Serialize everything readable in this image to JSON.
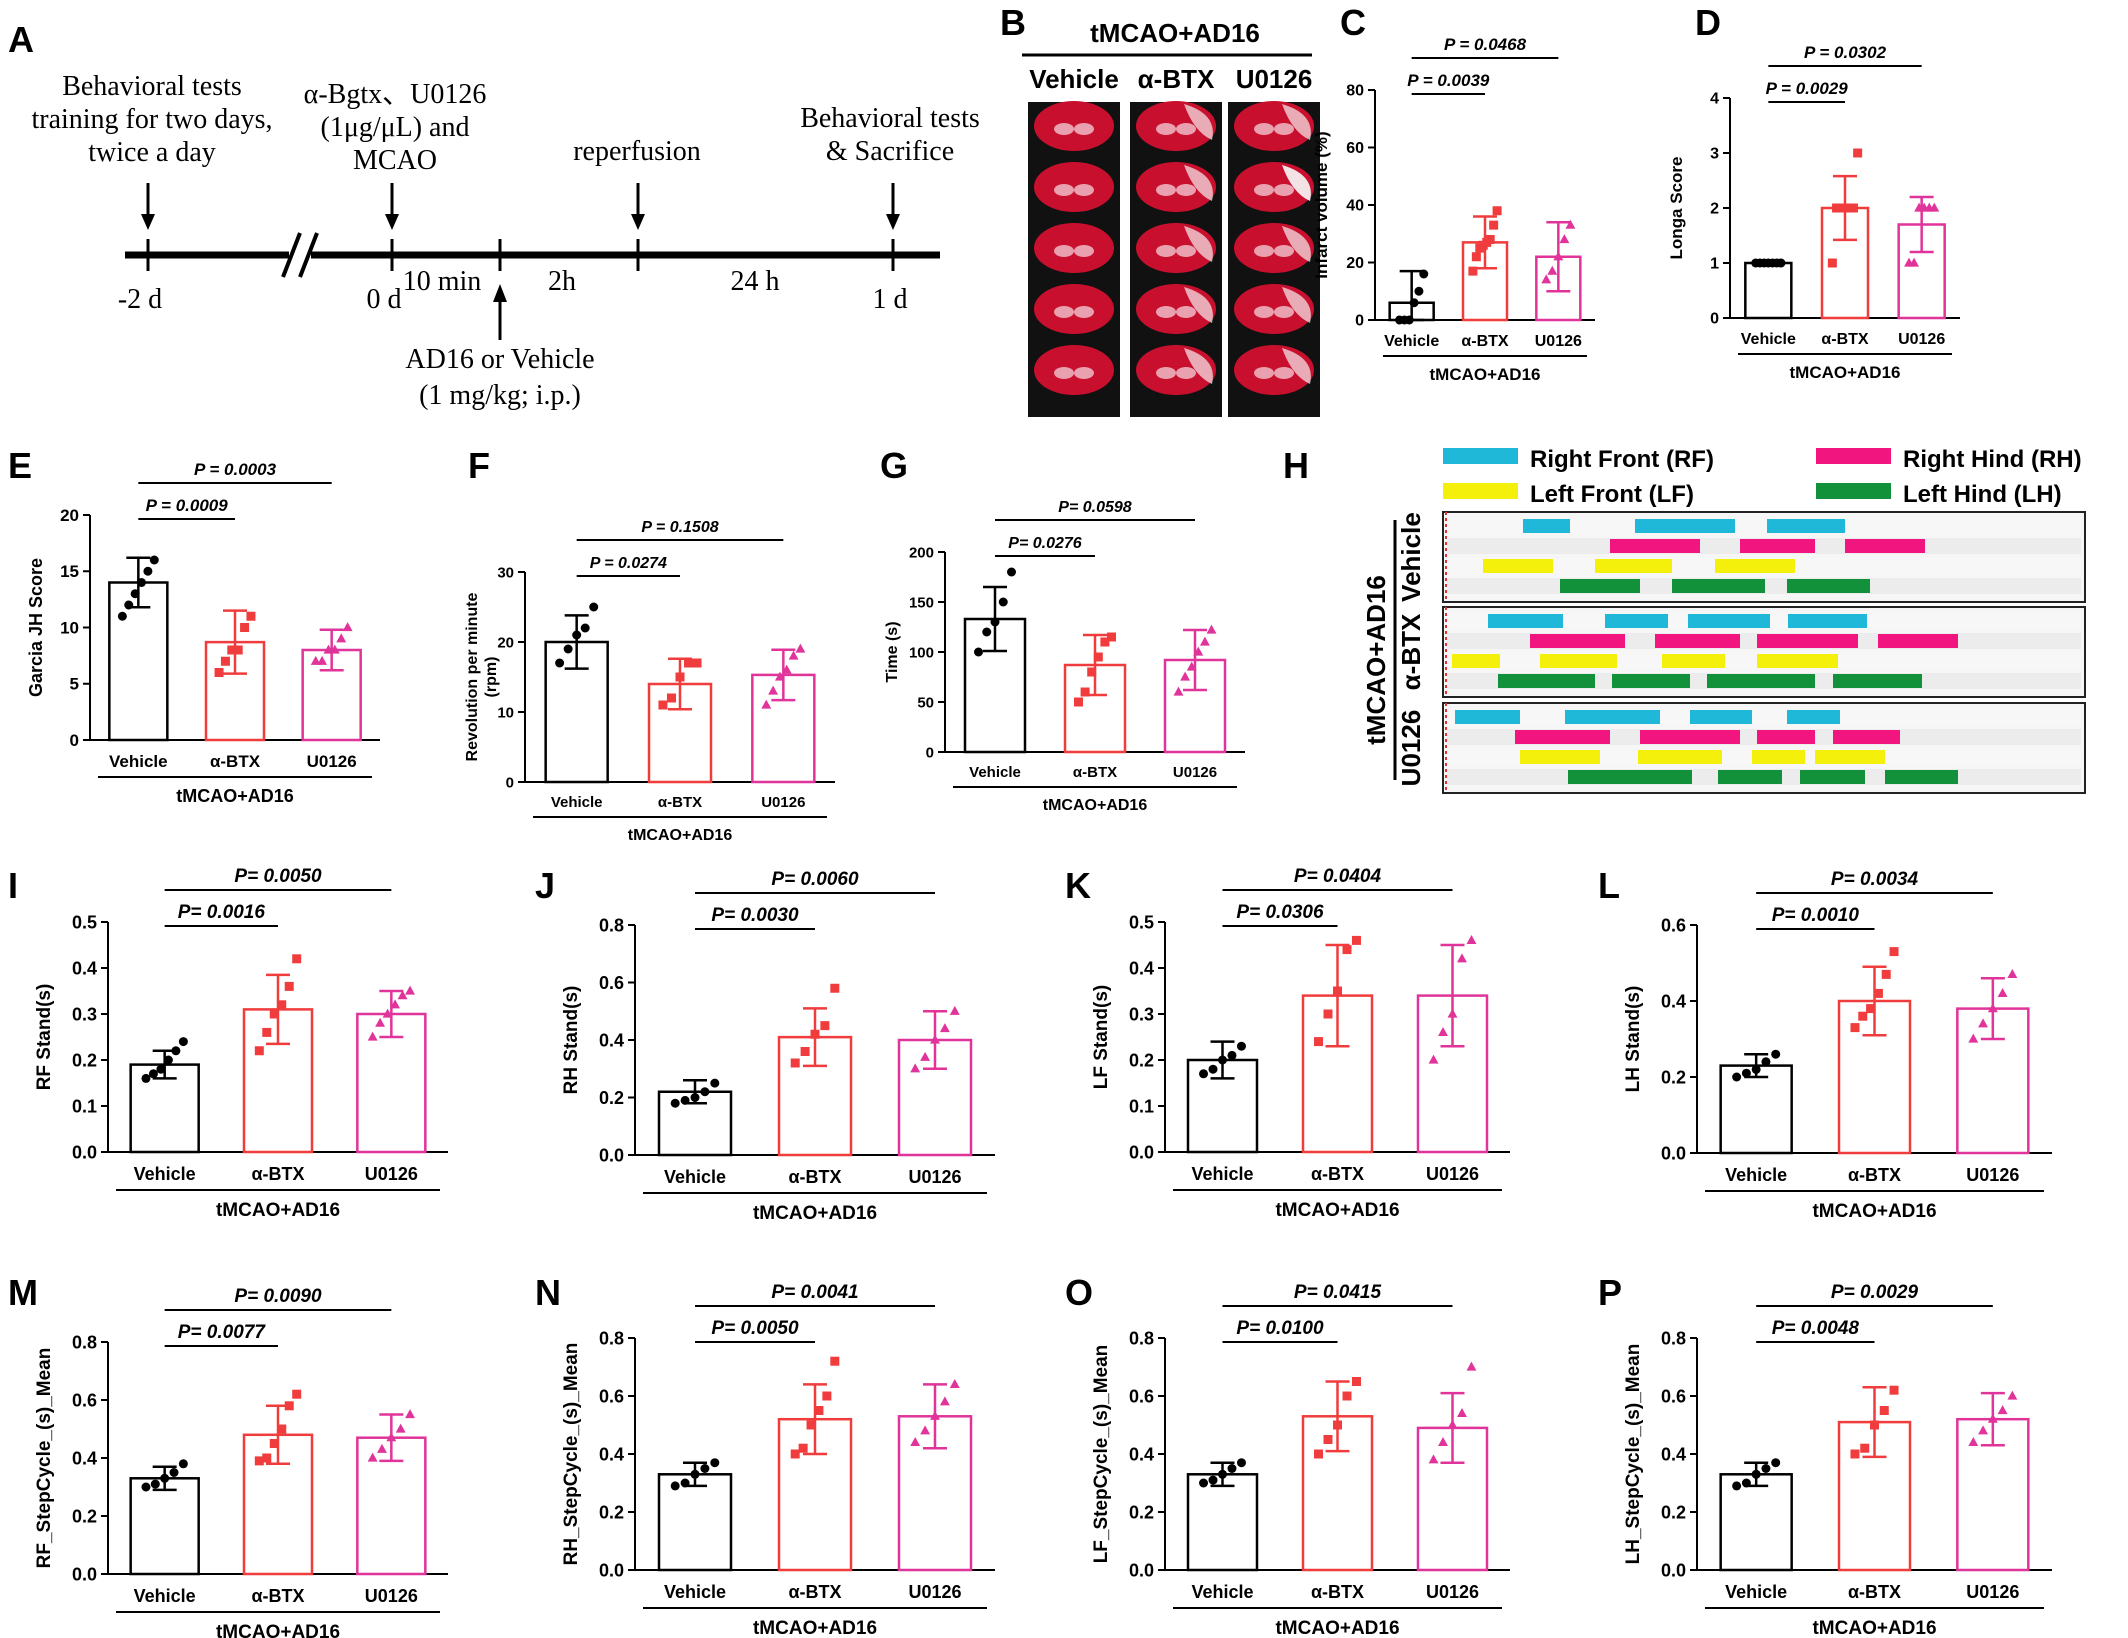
{
  "panel_labels": [
    "A",
    "B",
    "C",
    "D",
    "E",
    "F",
    "G",
    "H",
    "I",
    "J",
    "K",
    "L",
    "M",
    "N",
    "O",
    "P"
  ],
  "timeline": {
    "events_top": [
      {
        "text": "Behavioral tests\ntraining for two days,\ntwice a day"
      },
      {
        "text": "α-Bgtx、U0126\n(1μg/μL) and\nMCAO"
      },
      {
        "text": "reperfusion"
      },
      {
        "text": "Behavioral tests\n& Sacrifice"
      }
    ],
    "ticks": [
      "-2 d",
      "0 d",
      "1 d"
    ],
    "intervals": [
      "10 min",
      "2h",
      "24 h"
    ],
    "bottom_event": "AD16 or Vehicle\n(1 mg/kg; i.p.)"
  },
  "ttc": {
    "title": "tMCAO+AD16",
    "columns": [
      "Vehicle",
      "α-BTX",
      "U0126"
    ]
  },
  "gait": {
    "legend": [
      {
        "label": "Right Front (RF)",
        "color": "#1fb8d8"
      },
      {
        "label": "Right Hind (RH)",
        "color": "#f0157f"
      },
      {
        "label": "Left Front (LF)",
        "color": "#f4f00c"
      },
      {
        "label": "Left Hind (LH)",
        "color": "#12913a"
      }
    ],
    "group_title": "tMCAO+AD16",
    "groups": [
      "Vehicle",
      "α-BTX",
      "U0126"
    ]
  },
  "colors": {
    "vehicle": "#000000",
    "btx": "#f03c3c",
    "u0126": "#e0349a"
  },
  "chart_data": [
    {
      "panel": "C",
      "type": "bar",
      "ylabel": "Infarct volume (%)",
      "group_label": "tMCAO+AD16",
      "categories": [
        "Vehicle",
        "α-BTX",
        "U0126"
      ],
      "values": [
        6,
        27,
        22
      ],
      "errors": [
        11,
        9,
        12
      ],
      "ylim": [
        0,
        80
      ],
      "yticks": [
        0,
        20,
        40,
        60,
        80
      ],
      "points": [
        [
          0,
          0,
          0,
          6,
          10,
          16
        ],
        [
          17,
          22,
          25,
          26,
          27,
          28,
          33,
          38
        ],
        [
          14,
          17,
          22,
          28,
          33
        ]
      ],
      "pvalues": [
        {
          "text": "P = 0.0039",
          "from": 0,
          "to": 1
        },
        {
          "text": "P = 0.0468",
          "from": 0,
          "to": 2
        }
      ]
    },
    {
      "panel": "D",
      "type": "bar",
      "ylabel": "Longa Score",
      "group_label": "tMCAO+AD16",
      "categories": [
        "Vehicle",
        "α-BTX",
        "U0126"
      ],
      "values": [
        1,
        2,
        1.7
      ],
      "errors": [
        0,
        0.58,
        0.5
      ],
      "ylim": [
        0,
        4
      ],
      "yticks": [
        0,
        1,
        2,
        3,
        4
      ],
      "points": [
        [
          1,
          1,
          1,
          1,
          1,
          1,
          1
        ],
        [
          1,
          2,
          2,
          2,
          2,
          2,
          3
        ],
        [
          1,
          1,
          2,
          2,
          2,
          2
        ]
      ],
      "pvalues": [
        {
          "text": "P = 0.0029",
          "from": 0,
          "to": 1
        },
        {
          "text": "P = 0.0302",
          "from": 0,
          "to": 2
        }
      ]
    },
    {
      "panel": "E",
      "type": "bar",
      "ylabel": "Garcia JH Score",
      "group_label": "tMCAO+AD16",
      "categories": [
        "Vehicle",
        "α-BTX",
        "U0126"
      ],
      "values": [
        14,
        8.7,
        8
      ],
      "errors": [
        2.2,
        2.8,
        1.8
      ],
      "ylim": [
        0,
        20
      ],
      "yticks": [
        0,
        5,
        10,
        15,
        20
      ],
      "points": [
        [
          11,
          12,
          13,
          14,
          15,
          16
        ],
        [
          6,
          7,
          8,
          8,
          10,
          11
        ],
        [
          7,
          7,
          8,
          8,
          9,
          10
        ]
      ],
      "pvalues": [
        {
          "text": "P = 0.0009",
          "from": 0,
          "to": 1
        },
        {
          "text": "P = 0.0003",
          "from": 0,
          "to": 2
        }
      ]
    },
    {
      "panel": "F",
      "type": "bar",
      "ylabel": "Revolution per minute\n(rpm)",
      "group_label": "tMCAO+AD16",
      "categories": [
        "Vehicle",
        "α-BTX",
        "U0126"
      ],
      "values": [
        20,
        14,
        15.3
      ],
      "errors": [
        3.8,
        3.6,
        3.6
      ],
      "ylim": [
        0,
        30
      ],
      "yticks": [
        0,
        10,
        20,
        30
      ],
      "points": [
        [
          17,
          19,
          21,
          22,
          25
        ],
        [
          11,
          12,
          15,
          17,
          17
        ],
        [
          11,
          13,
          15,
          16,
          18,
          19
        ]
      ],
      "pvalues": [
        {
          "text": "P = 0.0274",
          "from": 0,
          "to": 1
        },
        {
          "text": "P = 0.1508",
          "from": 0,
          "to": 2
        }
      ]
    },
    {
      "panel": "G",
      "type": "bar",
      "ylabel": "Time (s)",
      "group_label": "tMCAO+AD16",
      "categories": [
        "Vehicle",
        "α-BTX",
        "U0126"
      ],
      "values": [
        133,
        87,
        92
      ],
      "errors": [
        32,
        30,
        30
      ],
      "ylim": [
        0,
        200
      ],
      "yticks": [
        0,
        50,
        100,
        150,
        200
      ],
      "points": [
        [
          100,
          120,
          130,
          150,
          180
        ],
        [
          50,
          60,
          80,
          95,
          110,
          115
        ],
        [
          60,
          75,
          85,
          100,
          110,
          122
        ]
      ],
      "pvalues": [
        {
          "text": "P= 0.0276",
          "from": 0,
          "to": 1
        },
        {
          "text": "P= 0.0598",
          "from": 0,
          "to": 2
        }
      ]
    },
    {
      "panel": "I",
      "type": "bar",
      "ylabel": "RF Stand(s)",
      "group_label": "tMCAO+AD16",
      "categories": [
        "Vehicle",
        "α-BTX",
        "U0126"
      ],
      "values": [
        0.19,
        0.31,
        0.3
      ],
      "errors": [
        0.03,
        0.075,
        0.05
      ],
      "ylim": [
        0,
        0.5
      ],
      "yticks": [
        0.0,
        0.1,
        0.2,
        0.3,
        0.4,
        0.5
      ],
      "points": [
        [
          0.16,
          0.17,
          0.18,
          0.2,
          0.22,
          0.24
        ],
        [
          0.22,
          0.26,
          0.3,
          0.32,
          0.36,
          0.42
        ],
        [
          0.25,
          0.28,
          0.3,
          0.32,
          0.34,
          0.35
        ]
      ],
      "pvalues": [
        {
          "text": "P= 0.0016",
          "from": 0,
          "to": 1
        },
        {
          "text": "P= 0.0050",
          "from": 0,
          "to": 2
        }
      ]
    },
    {
      "panel": "J",
      "type": "bar",
      "ylabel": "RH Stand(s)",
      "group_label": "tMCAO+AD16",
      "categories": [
        "Vehicle",
        "α-BTX",
        "U0126"
      ],
      "values": [
        0.22,
        0.41,
        0.4
      ],
      "errors": [
        0.04,
        0.1,
        0.1
      ],
      "ylim": [
        0,
        0.8
      ],
      "yticks": [
        0.0,
        0.2,
        0.4,
        0.6,
        0.8
      ],
      "points": [
        [
          0.18,
          0.19,
          0.2,
          0.22,
          0.25
        ],
        [
          0.32,
          0.36,
          0.42,
          0.45,
          0.58
        ],
        [
          0.3,
          0.34,
          0.4,
          0.44,
          0.5
        ]
      ],
      "pvalues": [
        {
          "text": "P= 0.0030",
          "from": 0,
          "to": 1
        },
        {
          "text": "P= 0.0060",
          "from": 0,
          "to": 2
        }
      ]
    },
    {
      "panel": "K",
      "type": "bar",
      "ylabel": "LF Stand(s)",
      "group_label": "tMCAO+AD16",
      "categories": [
        "Vehicle",
        "α-BTX",
        "U0126"
      ],
      "values": [
        0.2,
        0.34,
        0.34
      ],
      "errors": [
        0.04,
        0.11,
        0.11
      ],
      "ylim": [
        0,
        0.5
      ],
      "yticks": [
        0.0,
        0.1,
        0.2,
        0.3,
        0.4,
        0.5
      ],
      "points": [
        [
          0.17,
          0.18,
          0.2,
          0.21,
          0.23
        ],
        [
          0.24,
          0.3,
          0.35,
          0.44,
          0.46
        ],
        [
          0.2,
          0.26,
          0.3,
          0.42,
          0.46
        ]
      ],
      "pvalues": [
        {
          "text": "P= 0.0306",
          "from": 0,
          "to": 1
        },
        {
          "text": "P= 0.0404",
          "from": 0,
          "to": 2
        }
      ]
    },
    {
      "panel": "L",
      "type": "bar",
      "ylabel": "LH Stand(s)",
      "group_label": "tMCAO+AD16",
      "categories": [
        "Vehicle",
        "α-BTX",
        "U0126"
      ],
      "values": [
        0.23,
        0.4,
        0.38
      ],
      "errors": [
        0.03,
        0.09,
        0.08
      ],
      "ylim": [
        0,
        0.6
      ],
      "yticks": [
        0.0,
        0.2,
        0.4,
        0.6
      ],
      "points": [
        [
          0.2,
          0.21,
          0.22,
          0.24,
          0.26
        ],
        [
          0.33,
          0.36,
          0.38,
          0.42,
          0.47,
          0.53
        ],
        [
          0.3,
          0.34,
          0.38,
          0.42,
          0.47
        ]
      ],
      "pvalues": [
        {
          "text": "P= 0.0010",
          "from": 0,
          "to": 1
        },
        {
          "text": "P= 0.0034",
          "from": 0,
          "to": 2
        }
      ]
    },
    {
      "panel": "M",
      "type": "bar",
      "ylabel": "RF_StepCycle_(s)_Mean",
      "group_label": "tMCAO+AD16",
      "categories": [
        "Vehicle",
        "α-BTX",
        "U0126"
      ],
      "values": [
        0.33,
        0.48,
        0.47
      ],
      "errors": [
        0.04,
        0.1,
        0.08
      ],
      "ylim": [
        0,
        0.8
      ],
      "yticks": [
        0.0,
        0.2,
        0.4,
        0.6,
        0.8
      ],
      "points": [
        [
          0.3,
          0.31,
          0.33,
          0.35,
          0.38
        ],
        [
          0.39,
          0.4,
          0.45,
          0.5,
          0.58,
          0.62
        ],
        [
          0.4,
          0.43,
          0.47,
          0.5,
          0.55
        ]
      ],
      "pvalues": [
        {
          "text": "P= 0.0077",
          "from": 0,
          "to": 1
        },
        {
          "text": "P= 0.0090",
          "from": 0,
          "to": 2
        }
      ]
    },
    {
      "panel": "N",
      "type": "bar",
      "ylabel": "RH_StepCycle_(s)_Mean",
      "group_label": "tMCAO+AD16",
      "categories": [
        "Vehicle",
        "α-BTX",
        "U0126"
      ],
      "values": [
        0.33,
        0.52,
        0.53
      ],
      "errors": [
        0.04,
        0.12,
        0.11
      ],
      "ylim": [
        0,
        0.8
      ],
      "yticks": [
        0.0,
        0.2,
        0.4,
        0.6,
        0.8
      ],
      "points": [
        [
          0.29,
          0.3,
          0.33,
          0.35,
          0.37
        ],
        [
          0.4,
          0.42,
          0.5,
          0.55,
          0.6,
          0.72
        ],
        [
          0.44,
          0.48,
          0.53,
          0.58,
          0.64
        ]
      ],
      "pvalues": [
        {
          "text": "P= 0.0050",
          "from": 0,
          "to": 1
        },
        {
          "text": "P= 0.0041",
          "from": 0,
          "to": 2
        }
      ]
    },
    {
      "panel": "O",
      "type": "bar",
      "ylabel": "LF_StepCycle_(s)_Mean",
      "group_label": "tMCAO+AD16",
      "categories": [
        "Vehicle",
        "α-BTX",
        "U0126"
      ],
      "values": [
        0.33,
        0.53,
        0.49
      ],
      "errors": [
        0.04,
        0.12,
        0.12
      ],
      "ylim": [
        0,
        0.8
      ],
      "yticks": [
        0.0,
        0.2,
        0.4,
        0.6,
        0.8
      ],
      "points": [
        [
          0.3,
          0.31,
          0.33,
          0.35,
          0.37
        ],
        [
          0.4,
          0.45,
          0.5,
          0.6,
          0.65
        ],
        [
          0.38,
          0.44,
          0.5,
          0.54,
          0.7
        ]
      ],
      "pvalues": [
        {
          "text": "P= 0.0100",
          "from": 0,
          "to": 1
        },
        {
          "text": "P= 0.0415",
          "from": 0,
          "to": 2
        }
      ]
    },
    {
      "panel": "P",
      "type": "bar",
      "ylabel": "LH_StepCycle_(s)_Mean",
      "group_label": "tMCAO+AD16",
      "categories": [
        "Vehicle",
        "α-BTX",
        "U0126"
      ],
      "values": [
        0.33,
        0.51,
        0.52
      ],
      "errors": [
        0.04,
        0.12,
        0.09
      ],
      "ylim": [
        0,
        0.8
      ],
      "yticks": [
        0.0,
        0.2,
        0.4,
        0.6,
        0.8
      ],
      "points": [
        [
          0.29,
          0.3,
          0.33,
          0.35,
          0.37
        ],
        [
          0.4,
          0.42,
          0.5,
          0.55,
          0.62
        ],
        [
          0.44,
          0.48,
          0.52,
          0.55,
          0.6
        ]
      ],
      "pvalues": [
        {
          "text": "P= 0.0048",
          "from": 0,
          "to": 1
        },
        {
          "text": "P= 0.0029",
          "from": 0,
          "to": 2
        }
      ]
    }
  ]
}
